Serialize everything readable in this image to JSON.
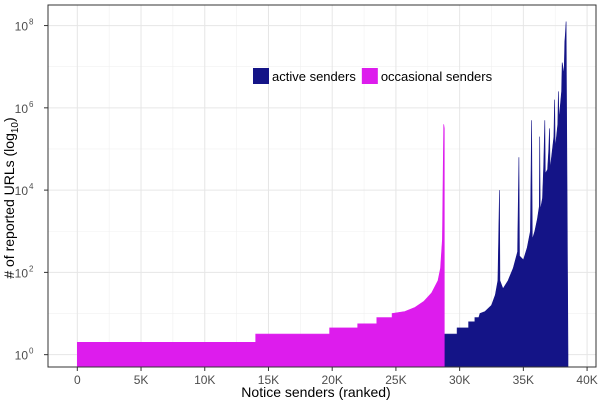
{
  "chart_data": {
    "type": "area",
    "xlabel": "Notice senders (ranked)",
    "ylabel": "# of reported URLs (log",
    "ylabel_sub": "10",
    "ylabel_end": ")",
    "y_scale": "log10",
    "xlim": [
      -2300,
      40700
    ],
    "ylim_log10": [
      -0.3,
      8.5
    ],
    "x_ticks": [
      0,
      5000,
      10000,
      15000,
      20000,
      25000,
      30000,
      35000,
      40000
    ],
    "x_tick_labels": [
      "0",
      "5K",
      "10K",
      "15K",
      "20K",
      "25K",
      "30K",
      "35K",
      "40K"
    ],
    "y_ticks_log10": [
      0,
      2,
      4,
      6,
      8
    ],
    "y_tick_base": "10",
    "y_tick_exponents": [
      "0",
      "2",
      "4",
      "6",
      "8"
    ],
    "grid": true,
    "legend_position": "top-center",
    "series": [
      {
        "name": "active senders",
        "color": "#141487",
        "points": [
          [
            28800,
            0.5
          ],
          [
            29800,
            0.5
          ],
          [
            29800,
            0.65
          ],
          [
            30700,
            0.65
          ],
          [
            30700,
            0.8
          ],
          [
            31200,
            0.8
          ],
          [
            31200,
            0.9
          ],
          [
            31500,
            0.9
          ],
          [
            31600,
            1.0
          ],
          [
            32000,
            1.05
          ],
          [
            32500,
            1.2
          ],
          [
            32800,
            1.45
          ],
          [
            33000,
            1.8
          ],
          [
            33130,
            4.0
          ],
          [
            33160,
            1.8
          ],
          [
            33400,
            1.6
          ],
          [
            33800,
            1.8
          ],
          [
            34200,
            2.1
          ],
          [
            34550,
            2.5
          ],
          [
            34650,
            4.8
          ],
          [
            34700,
            2.4
          ],
          [
            35000,
            2.3
          ],
          [
            35300,
            2.6
          ],
          [
            35550,
            3.0
          ],
          [
            35650,
            5.7
          ],
          [
            35700,
            2.8
          ],
          [
            35900,
            3.0
          ],
          [
            36100,
            3.3
          ],
          [
            36250,
            3.6
          ],
          [
            36280,
            5.3
          ],
          [
            36320,
            3.5
          ],
          [
            36500,
            3.8
          ],
          [
            36600,
            4.6
          ],
          [
            36680,
            5.7
          ],
          [
            36720,
            4.4
          ],
          [
            36900,
            4.5
          ],
          [
            37000,
            5.0
          ],
          [
            37050,
            5.5
          ],
          [
            37100,
            4.5
          ],
          [
            37400,
            5.3
          ],
          [
            37450,
            6.2
          ],
          [
            37500,
            5.0
          ],
          [
            37700,
            5.6
          ],
          [
            37750,
            6.4
          ],
          [
            37800,
            5.7
          ],
          [
            38000,
            6.4
          ],
          [
            38050,
            7.1
          ],
          [
            38200,
            6.8
          ],
          [
            38250,
            7.6
          ],
          [
            38300,
            7.8
          ],
          [
            38350,
            8.1
          ],
          [
            38500,
            0.0
          ]
        ]
      },
      {
        "name": "occasional senders",
        "color": "#dd1ced",
        "points": [
          [
            0,
            0.3
          ],
          [
            14000,
            0.3
          ],
          [
            14000,
            0.5
          ],
          [
            19800,
            0.5
          ],
          [
            19800,
            0.65
          ],
          [
            22000,
            0.65
          ],
          [
            22000,
            0.75
          ],
          [
            23500,
            0.75
          ],
          [
            23500,
            0.9
          ],
          [
            24700,
            0.9
          ],
          [
            24700,
            1.0
          ],
          [
            25700,
            1.05
          ],
          [
            26500,
            1.15
          ],
          [
            27200,
            1.3
          ],
          [
            27800,
            1.5
          ],
          [
            28300,
            1.8
          ],
          [
            28500,
            2.1
          ],
          [
            28650,
            2.8
          ],
          [
            28750,
            5.6
          ],
          [
            28800,
            5.5
          ],
          [
            28800,
            0.0
          ]
        ]
      }
    ]
  }
}
